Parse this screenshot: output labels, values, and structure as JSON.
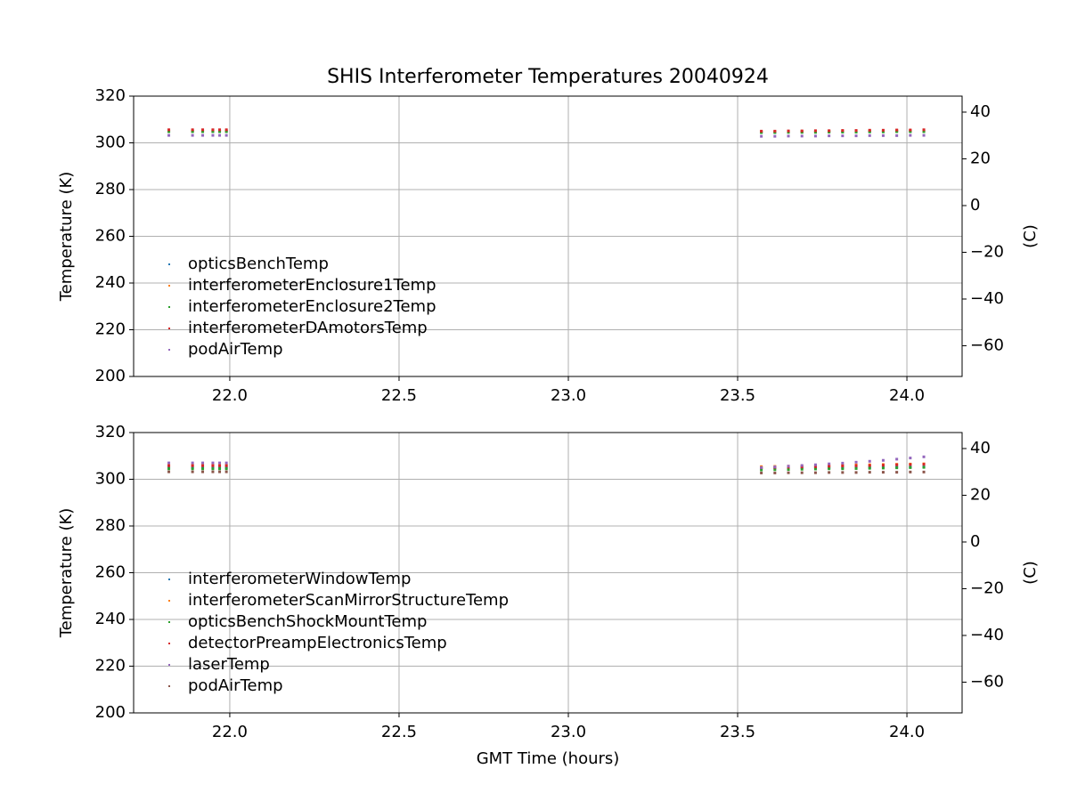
{
  "chart_data": [
    {
      "type": "scatter",
      "title": "SHIS Interferometer Temperatures 20040924",
      "ylabel": "Temperature (K)",
      "y2label": "(C)",
      "x": [
        21.82,
        21.89,
        21.92,
        21.95,
        21.97,
        21.99,
        23.57,
        23.61,
        23.65,
        23.69,
        23.73,
        23.77,
        23.81,
        23.85,
        23.89,
        23.93,
        23.97,
        24.01,
        24.05
      ],
      "xlim": [
        21.716,
        24.163
      ],
      "xticks": [
        {
          "value": 22.0,
          "label": "22.0"
        },
        {
          "value": 22.5,
          "label": "22.5"
        },
        {
          "value": 23.0,
          "label": "23.0"
        },
        {
          "value": 23.5,
          "label": "23.5"
        },
        {
          "value": 24.0,
          "label": "24.0"
        }
      ],
      "ylim": [
        200,
        320
      ],
      "yticks": [
        200,
        220,
        240,
        260,
        280,
        300,
        320
      ],
      "y2lim": [
        -73.15,
        46.85
      ],
      "y2ticks": [
        {
          "value": -60,
          "label": "−60"
        },
        {
          "value": -40,
          "label": "−40"
        },
        {
          "value": -20,
          "label": "−20"
        },
        0,
        20,
        40
      ],
      "grid": true,
      "legend": "lower left",
      "series": [
        {
          "name": "opticsBenchTemp",
          "color": "#1f77b4",
          "values": [
            305.0,
            305.0,
            305.0,
            305.0,
            305.0,
            305.0,
            304.6,
            304.6,
            304.7,
            304.7,
            304.7,
            304.8,
            304.8,
            304.8,
            304.9,
            304.9,
            305.0,
            305.0,
            305.0
          ]
        },
        {
          "name": "interferometerEnclosure1Temp",
          "color": "#ff7f0e",
          "values": [
            305.2,
            305.2,
            305.2,
            305.2,
            305.2,
            305.2,
            304.9,
            304.9,
            304.9,
            305.0,
            305.0,
            305.0,
            305.1,
            305.1,
            305.2,
            305.2,
            305.3,
            305.3,
            305.3
          ]
        },
        {
          "name": "interferometerEnclosure2Temp",
          "color": "#2ca02c",
          "values": [
            304.8,
            304.8,
            304.8,
            304.8,
            304.8,
            304.8,
            304.4,
            304.4,
            304.5,
            304.5,
            304.5,
            304.6,
            304.6,
            304.6,
            304.7,
            304.7,
            304.8,
            304.8,
            304.8
          ]
        },
        {
          "name": "interferometerDAmotorsTemp",
          "color": "#d62728",
          "values": [
            305.6,
            305.6,
            305.6,
            305.6,
            305.6,
            305.6,
            305.0,
            305.0,
            305.1,
            305.1,
            305.2,
            305.2,
            305.3,
            305.3,
            305.4,
            305.4,
            305.5,
            305.5,
            305.6
          ]
        },
        {
          "name": "podAirTemp",
          "color": "#9467bd",
          "values": [
            303.2,
            303.2,
            303.2,
            303.2,
            303.2,
            303.2,
            302.8,
            302.8,
            302.9,
            302.9,
            302.9,
            303.0,
            303.0,
            303.0,
            303.1,
            303.1,
            303.1,
            303.2,
            303.2
          ]
        }
      ]
    },
    {
      "type": "scatter",
      "ylabel": "Temperature (K)",
      "y2label": "(C)",
      "xlabel": "GMT Time (hours)",
      "x": [
        21.82,
        21.89,
        21.92,
        21.95,
        21.97,
        21.99,
        23.57,
        23.61,
        23.65,
        23.69,
        23.73,
        23.77,
        23.81,
        23.85,
        23.89,
        23.93,
        23.97,
        24.01,
        24.05
      ],
      "xlim": [
        21.716,
        24.163
      ],
      "xticks": [
        {
          "value": 22.0,
          "label": "22.0"
        },
        {
          "value": 22.5,
          "label": "22.5"
        },
        {
          "value": 23.0,
          "label": "23.0"
        },
        {
          "value": 23.5,
          "label": "23.5"
        },
        {
          "value": 24.0,
          "label": "24.0"
        }
      ],
      "ylim": [
        200,
        320
      ],
      "yticks": [
        200,
        220,
        240,
        260,
        280,
        300,
        320
      ],
      "y2lim": [
        -73.15,
        46.85
      ],
      "y2ticks": [
        {
          "value": -60,
          "label": "−60"
        },
        {
          "value": -40,
          "label": "−40"
        },
        {
          "value": -20,
          "label": "−20"
        },
        0,
        20,
        40
      ],
      "grid": true,
      "legend": "lower left",
      "series": [
        {
          "name": "interferometerWindowTemp",
          "color": "#1f77b4",
          "values": [
            305.0,
            305.0,
            305.0,
            305.0,
            305.0,
            305.0,
            304.8,
            304.8,
            304.9,
            304.9,
            305.0,
            305.0,
            305.0,
            305.1,
            305.1,
            305.2,
            305.2,
            305.2,
            305.3
          ]
        },
        {
          "name": "interferometerScanMirrorStructureTemp",
          "color": "#ff7f0e",
          "values": [
            306.0,
            306.0,
            306.0,
            306.0,
            306.0,
            306.0,
            305.4,
            305.5,
            305.6,
            305.7,
            305.8,
            305.9,
            306.0,
            306.1,
            306.2,
            306.3,
            306.4,
            306.5,
            306.6
          ]
        },
        {
          "name": "opticsBenchShockMountTemp",
          "color": "#2ca02c",
          "values": [
            304.5,
            304.5,
            304.5,
            304.5,
            304.5,
            304.5,
            304.0,
            304.1,
            304.2,
            304.3,
            304.4,
            304.5,
            304.5,
            304.6,
            304.7,
            304.8,
            304.9,
            305.0,
            305.1
          ]
        },
        {
          "name": "detectorPreampElectronicsTemp",
          "color": "#d62728",
          "values": [
            305.8,
            305.8,
            305.8,
            305.8,
            305.8,
            305.8,
            305.0,
            305.1,
            305.2,
            305.3,
            305.4,
            305.6,
            305.7,
            305.8,
            305.9,
            306.0,
            306.2,
            306.3,
            306.4
          ]
        },
        {
          "name": "laserTemp",
          "color": "#9467bd",
          "values": [
            307.0,
            307.0,
            307.0,
            307.0,
            307.0,
            307.0,
            305.0,
            305.3,
            305.6,
            305.9,
            306.2,
            306.6,
            306.9,
            307.3,
            307.7,
            308.1,
            308.6,
            309.1,
            309.6
          ]
        },
        {
          "name": "podAirTemp",
          "color": "#8c564b",
          "values": [
            303.2,
            303.2,
            303.2,
            303.2,
            303.2,
            303.2,
            302.7,
            302.7,
            302.8,
            302.8,
            302.8,
            302.9,
            302.9,
            302.9,
            303.0,
            303.0,
            303.0,
            303.1,
            303.1
          ]
        }
      ]
    }
  ]
}
